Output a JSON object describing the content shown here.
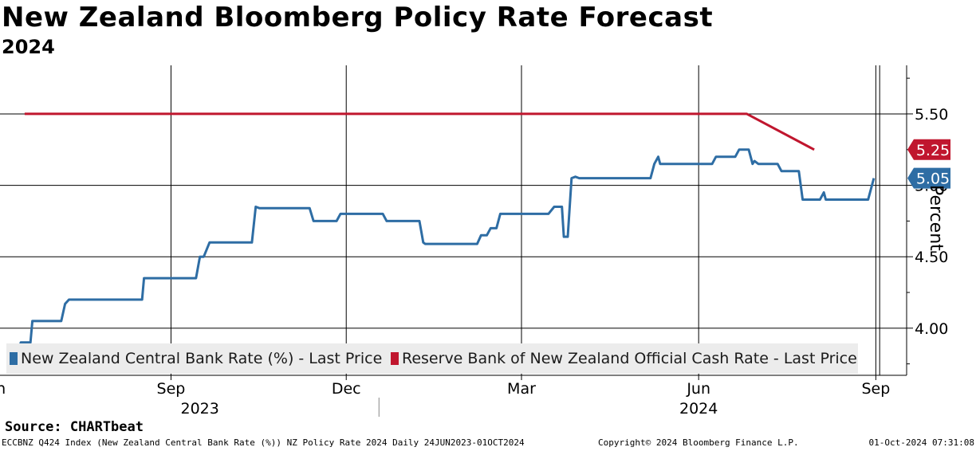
{
  "chart_data": {
    "type": "line",
    "title": "New Zealand Bloomberg Policy Rate Forecast",
    "subtitle": "2024",
    "ylabel": "Percent",
    "ylim": [
      3.67,
      5.84
    ],
    "yticks": [
      5.5,
      5.0,
      4.5,
      4.0
    ],
    "ytick_labels": [
      "5.50",
      "5.00",
      "4.50",
      "4.00"
    ],
    "x_range": [
      "2023-06-24",
      "2024-10-01"
    ],
    "x_month_ticks": [
      {
        "label": "Jun",
        "date": "2023-06-15"
      },
      {
        "label": "Sep",
        "date": "2023-09-15"
      },
      {
        "label": "Dec",
        "date": "2023-12-15"
      },
      {
        "label": "Mar",
        "date": "2024-03-15"
      },
      {
        "label": "Jun",
        "date": "2024-06-15"
      },
      {
        "label": "Sep",
        "date": "2024-09-15"
      }
    ],
    "x_year_labels": [
      {
        "label": "2023",
        "date": "2023-09-30"
      },
      {
        "label": "2024",
        "date": "2024-06-15"
      }
    ],
    "series": [
      {
        "name": "New Zealand Central Bank Rate (%) - Last Price",
        "color": "#2e6da4",
        "last_value_label": "5.05",
        "points": [
          [
            "2023-06-24",
            3.85
          ],
          [
            "2023-06-28",
            3.85
          ],
          [
            "2023-06-29",
            3.9
          ],
          [
            "2023-07-04",
            3.9
          ],
          [
            "2023-07-05",
            4.05
          ],
          [
            "2023-07-20",
            4.05
          ],
          [
            "2023-07-22",
            4.17
          ],
          [
            "2023-07-24",
            4.2
          ],
          [
            "2023-08-31",
            4.2
          ],
          [
            "2023-09-01",
            4.35
          ],
          [
            "2023-09-28",
            4.35
          ],
          [
            "2023-09-30",
            4.5
          ],
          [
            "2023-10-02",
            4.5
          ],
          [
            "2023-10-05",
            4.6
          ],
          [
            "2023-10-27",
            4.6
          ],
          [
            "2023-10-29",
            4.85
          ],
          [
            "2023-10-31",
            4.84
          ],
          [
            "2023-11-26",
            4.84
          ],
          [
            "2023-11-28",
            4.75
          ],
          [
            "2023-12-10",
            4.75
          ],
          [
            "2023-12-12",
            4.8
          ],
          [
            "2024-01-03",
            4.8
          ],
          [
            "2024-01-05",
            4.75
          ],
          [
            "2024-01-22",
            4.75
          ],
          [
            "2024-01-24",
            4.6
          ],
          [
            "2024-01-25",
            4.59
          ],
          [
            "2024-02-21",
            4.59
          ],
          [
            "2024-02-23",
            4.65
          ],
          [
            "2024-02-26",
            4.65
          ],
          [
            "2024-02-28",
            4.7
          ],
          [
            "2024-03-02",
            4.7
          ],
          [
            "2024-03-04",
            4.8
          ],
          [
            "2024-03-29",
            4.8
          ],
          [
            "2024-04-01",
            4.85
          ],
          [
            "2024-04-05",
            4.85
          ],
          [
            "2024-04-06",
            4.64
          ],
          [
            "2024-04-08",
            4.64
          ],
          [
            "2024-04-10",
            5.05
          ],
          [
            "2024-04-12",
            5.06
          ],
          [
            "2024-04-14",
            5.05
          ],
          [
            "2024-05-21",
            5.05
          ],
          [
            "2024-05-23",
            5.15
          ],
          [
            "2024-05-25",
            5.2
          ],
          [
            "2024-05-26",
            5.15
          ],
          [
            "2024-06-22",
            5.15
          ],
          [
            "2024-06-24",
            5.2
          ],
          [
            "2024-07-04",
            5.2
          ],
          [
            "2024-07-06",
            5.25
          ],
          [
            "2024-07-11",
            5.25
          ],
          [
            "2024-07-13",
            5.15
          ],
          [
            "2024-07-14",
            5.17
          ],
          [
            "2024-07-16",
            5.15
          ],
          [
            "2024-07-26",
            5.15
          ],
          [
            "2024-07-28",
            5.1
          ],
          [
            "2024-08-06",
            5.1
          ],
          [
            "2024-08-08",
            4.9
          ],
          [
            "2024-08-17",
            4.9
          ],
          [
            "2024-08-19",
            4.95
          ],
          [
            "2024-08-20",
            4.9
          ],
          [
            "2024-09-11",
            4.9
          ],
          [
            "2024-09-13",
            5.0
          ],
          [
            "2024-09-14",
            5.05
          ]
        ]
      },
      {
        "name": "Reserve Bank of New Zealand Official Cash Rate - Last Price",
        "color": "#c0162e",
        "last_value_label": "5.25",
        "points": [
          [
            "2023-07-01",
            5.5
          ],
          [
            "2024-07-10",
            5.5
          ],
          [
            "2024-08-14",
            5.25
          ]
        ]
      }
    ]
  },
  "legend": {
    "series1_label": "New Zealand Central Bank Rate (%) - Last Price",
    "series2_label": "Reserve Bank of New Zealand Official Cash Rate - Last Price"
  },
  "source_text": "Source: CHARTbeat",
  "footer": {
    "left": "ECCBNZ Q424 Index (New Zealand Central Bank Rate (%)) NZ Policy Rate 2024  Daily 24JUN2023-01OCT2024",
    "center": "Copyright© 2024 Bloomberg Finance L.P.",
    "right": "01-Oct-2024 07:31:08"
  },
  "colors": {
    "blue": "#2e6da4",
    "red": "#c0162e",
    "legend_bg": "#ececec"
  }
}
